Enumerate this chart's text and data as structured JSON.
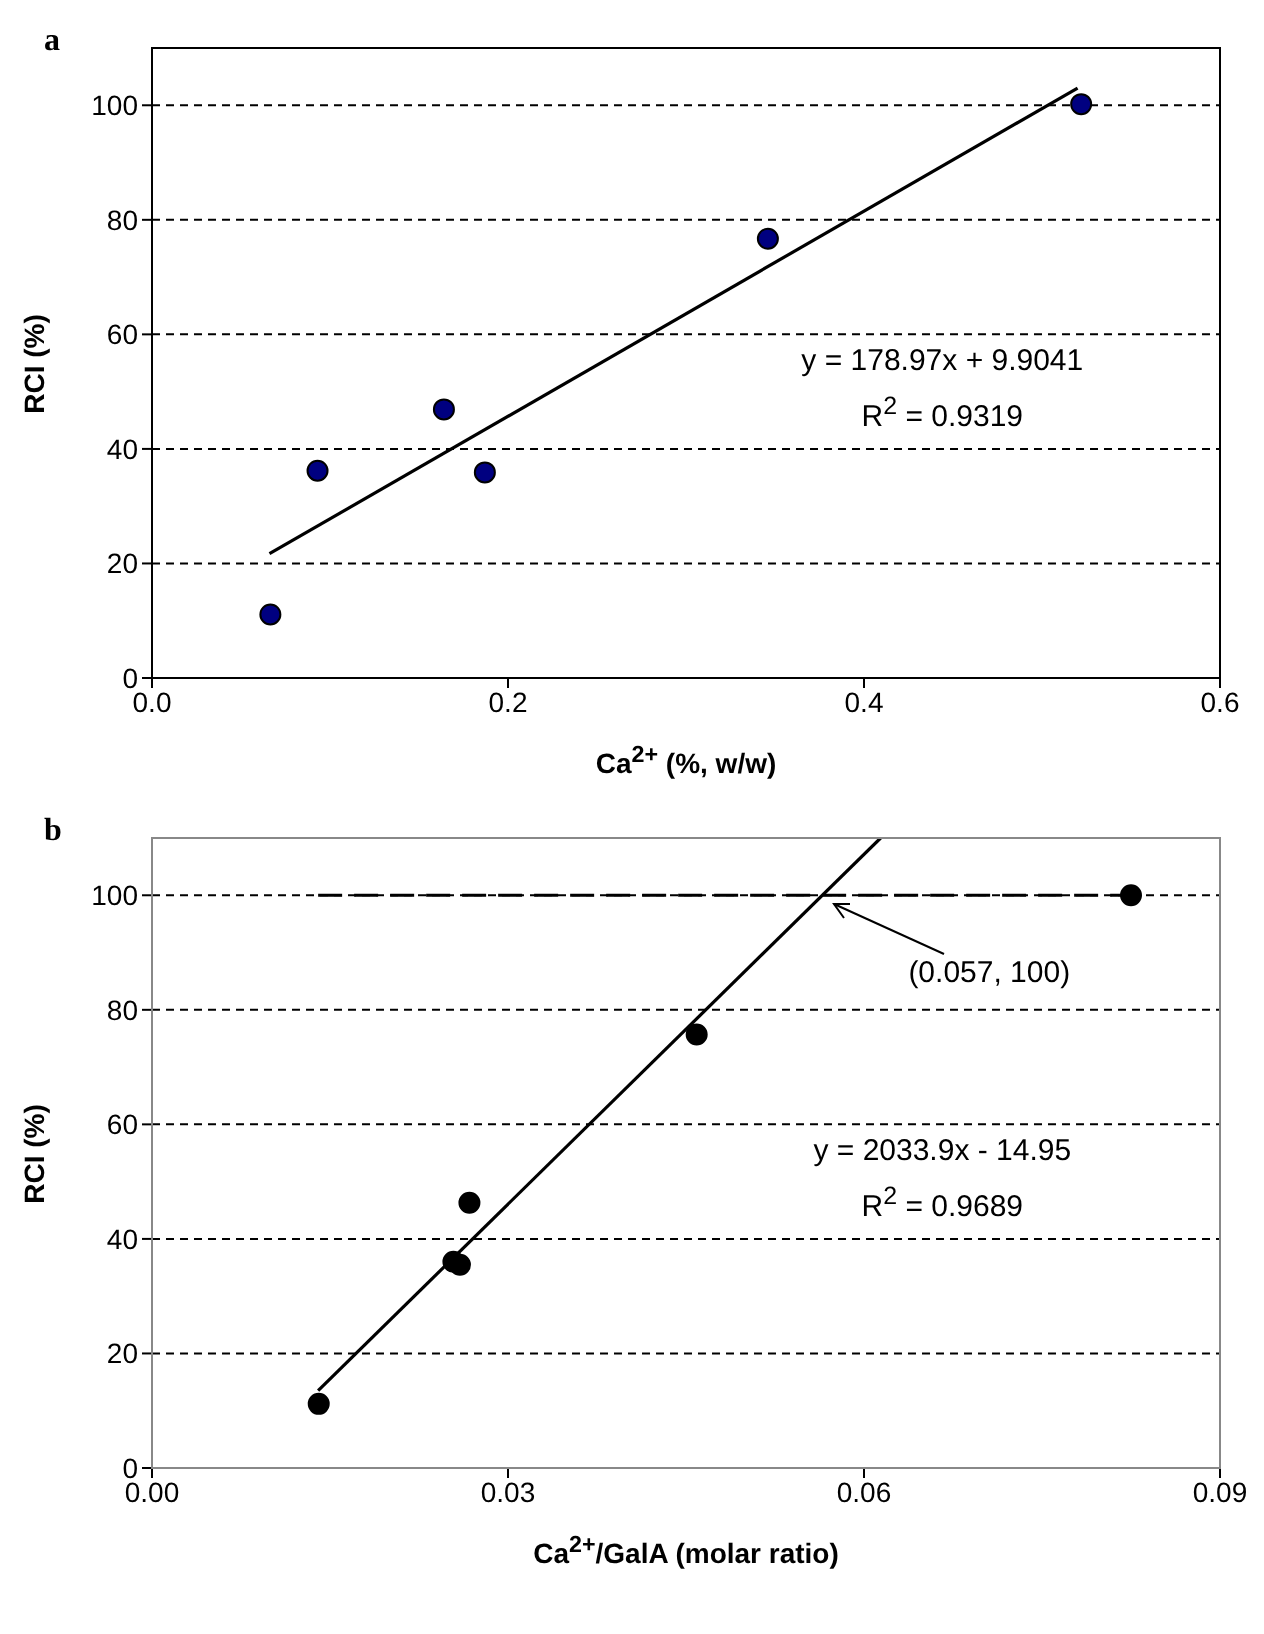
{
  "chart_data": [
    {
      "type": "scatter",
      "title": "a",
      "xlabel": "Ca$^{2+}$ (%, w/w)",
      "ylabel": "RCI (%)",
      "xlim": [
        0,
        0.6
      ],
      "ylim": [
        0,
        110
      ],
      "xticks": [
        {
          "value": 0,
          "label": "0.0"
        },
        {
          "value": 0.2,
          "label": "0.2"
        },
        {
          "value": 0.4,
          "label": "0.4"
        },
        {
          "value": 0.6,
          "label": "0.6"
        }
      ],
      "yticks": [
        0,
        20,
        40,
        60,
        80,
        100
      ],
      "grid": "y",
      "series": [
        {
          "type": "scatter",
          "marker": "circle",
          "color": "#000080",
          "x": [
            0.0665,
            0.093,
            0.164,
            0.187,
            0.346,
            0.522
          ],
          "values": [
            11.1,
            36.2,
            46.9,
            35.9,
            76.7,
            100.2
          ]
        },
        {
          "type": "line",
          "marker": "none",
          "line_style": "solid",
          "color": "#000000",
          "x": [
            0.066,
            0.52
          ],
          "values": [
            21.7,
            103
          ]
        }
      ],
      "annotations": [
        "y = 178.97x + 9.9041",
        "R$^{2}$ = 0.9319"
      ]
    },
    {
      "type": "scatter",
      "title": "b",
      "xlabel": "Ca$^{2+}$/GalA (molar ratio)",
      "ylabel": "RCI (%)",
      "xlim": [
        0,
        0.09
      ],
      "ylim": [
        0,
        110
      ],
      "xticks": [
        {
          "value": 0,
          "label": "0.00"
        },
        {
          "value": 0.03,
          "label": "0.03"
        },
        {
          "value": 0.06,
          "label": "0.06"
        },
        {
          "value": 0.09,
          "label": "0.09"
        }
      ],
      "yticks": [
        0,
        20,
        40,
        60,
        80,
        100
      ],
      "grid": "y",
      "series": [
        {
          "type": "scatter",
          "marker": "circle",
          "color": "#000000",
          "x": [
            0.01405,
            0.0254,
            0.02595,
            0.02675,
            0.0459,
            0.0825
          ],
          "values": [
            11.2,
            36,
            35.5,
            46.3,
            75.7,
            100
          ]
        },
        {
          "type": "line",
          "marker": "none",
          "line_style": "solid",
          "color": "#000000",
          "x": [
            0.014,
            0.0614
          ],
          "values": [
            13.5,
            110
          ]
        },
        {
          "type": "line",
          "marker": "none",
          "line_style": "dashed",
          "color": "#000000",
          "x": [
            0.014,
            0.0825
          ],
          "values": [
            100,
            100
          ]
        }
      ],
      "annotations": [
        {
          "text": "(0.057, 100)",
          "x": 0.057,
          "y": 100
        },
        "y = 2033.9x - 14.95",
        "R$^{2}$ = 0.9689"
      ]
    }
  ]
}
